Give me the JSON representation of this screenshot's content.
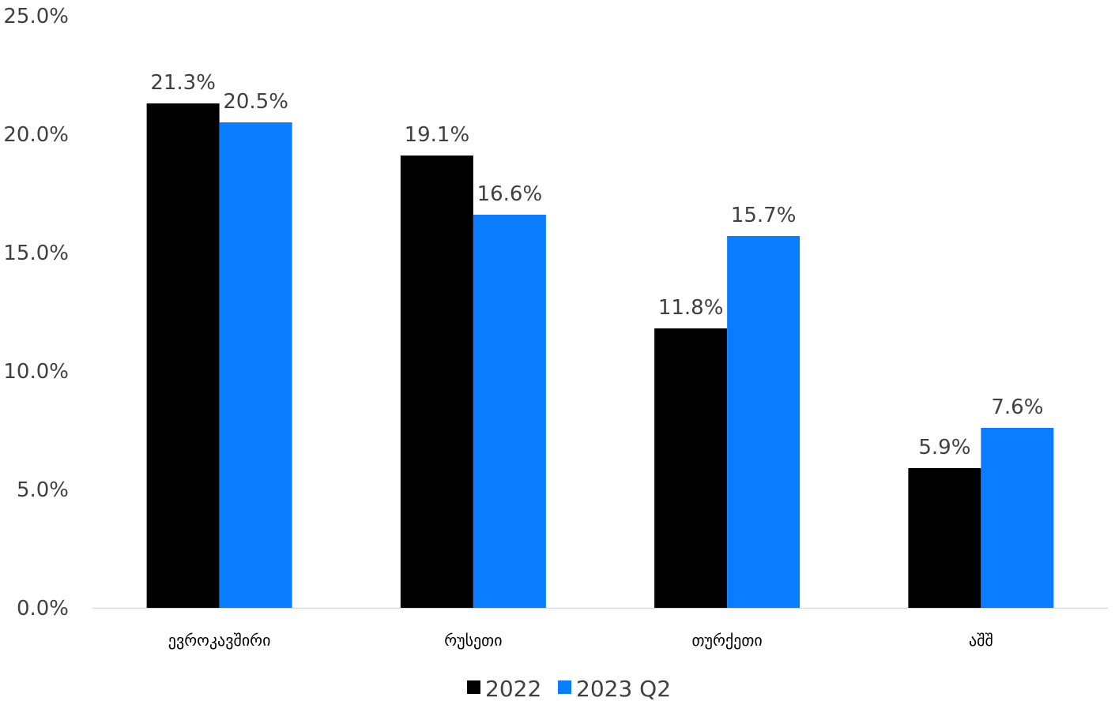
{
  "chart_data": {
    "type": "bar",
    "categories": [
      "ევროკავშირი",
      "რუსეთი",
      "თურქეთი",
      "აშშ"
    ],
    "series": [
      {
        "name": "2022",
        "values": [
          21.3,
          19.1,
          11.8,
          5.9
        ],
        "labels": [
          "21.3%",
          "19.1%",
          "11.8%",
          "5.9%"
        ],
        "color": "#000000"
      },
      {
        "name": "2023 Q2",
        "values": [
          20.5,
          16.6,
          15.7,
          7.6
        ],
        "labels": [
          "20.5%",
          "16.6%",
          "15.7%",
          "7.6%"
        ],
        "color": "#0a7cff"
      }
    ],
    "yticks": [
      {
        "value": 0,
        "label": "0.0%"
      },
      {
        "value": 5,
        "label": "5.0%"
      },
      {
        "value": 10,
        "label": "10.0%"
      },
      {
        "value": 15,
        "label": "15.0%"
      },
      {
        "value": 20,
        "label": "20.0%"
      },
      {
        "value": 25,
        "label": "25.0%"
      }
    ],
    "ylim": [
      0,
      25
    ],
    "grid": false,
    "legend": "bottom-center",
    "axis_color": "#d9d9d9"
  }
}
